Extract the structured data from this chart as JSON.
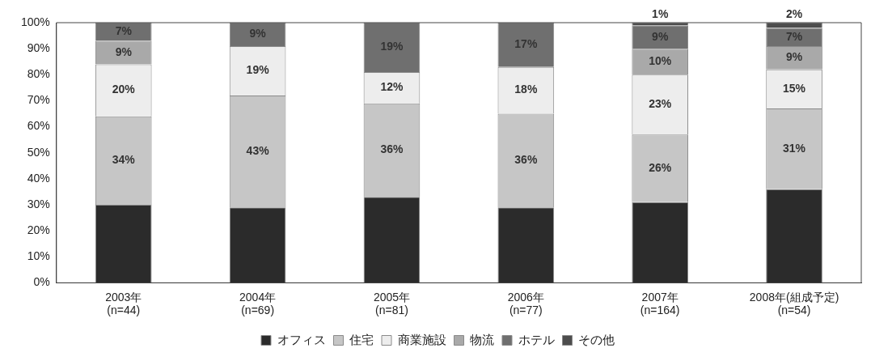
{
  "chart_data": {
    "type": "bar",
    "stacked": true,
    "categories": [
      "2003年\n(n=44)",
      "2004年\n(n=69)",
      "2005年\n(n=81)",
      "2006年\n(n=77)",
      "2007年\n(n=164)",
      "2008年(組成予定)\n(n=54)"
    ],
    "series": [
      {
        "name": "オフィス",
        "color": "#2b2b2b",
        "values": [
          30,
          29,
          33,
          29,
          31,
          36
        ],
        "value_labels": [
          null,
          null,
          null,
          null,
          null,
          null
        ]
      },
      {
        "name": "住宅",
        "color": "#c6c6c6",
        "values": [
          34,
          43,
          36,
          36,
          26,
          31
        ],
        "value_labels": [
          "34%",
          "43%",
          "36%",
          "36%",
          "26%",
          "31%"
        ]
      },
      {
        "name": "商業施設",
        "color": "#ededed",
        "values": [
          20,
          19,
          12,
          18,
          23,
          15
        ],
        "value_labels": [
          "20%",
          "19%",
          "12%",
          "18%",
          "23%",
          "15%"
        ]
      },
      {
        "name": "物流",
        "color": "#a9a9a9",
        "values": [
          9,
          0,
          0,
          0,
          10,
          9
        ],
        "value_labels": [
          "9%",
          null,
          null,
          null,
          "10%",
          "9%"
        ]
      },
      {
        "name": "ホテル",
        "color": "#6f6f6f",
        "values": [
          7,
          9,
          19,
          17,
          9,
          7
        ],
        "value_labels": [
          "7%",
          "9%",
          "19%",
          "17%",
          "9%",
          "7%"
        ]
      },
      {
        "name": "その他",
        "color": "#4d4d4d",
        "values": [
          0,
          0,
          0,
          0,
          1,
          2
        ],
        "value_labels": [
          null,
          null,
          null,
          null,
          "1%",
          "2%"
        ]
      }
    ],
    "ylim": [
      0,
      100
    ],
    "yticks": [
      {
        "value": 0,
        "label": "0%"
      },
      {
        "value": 10,
        "label": "10%"
      },
      {
        "value": 20,
        "label": "20%"
      },
      {
        "value": 30,
        "label": "30%"
      },
      {
        "value": 40,
        "label": "40%"
      },
      {
        "value": 50,
        "label": "50%"
      },
      {
        "value": 60,
        "label": "60%"
      },
      {
        "value": 70,
        "label": "70%"
      },
      {
        "value": 80,
        "label": "80%"
      },
      {
        "value": 90,
        "label": "90%"
      },
      {
        "value": 100,
        "label": "100%"
      }
    ],
    "grid": false,
    "legend": "bottom"
  }
}
